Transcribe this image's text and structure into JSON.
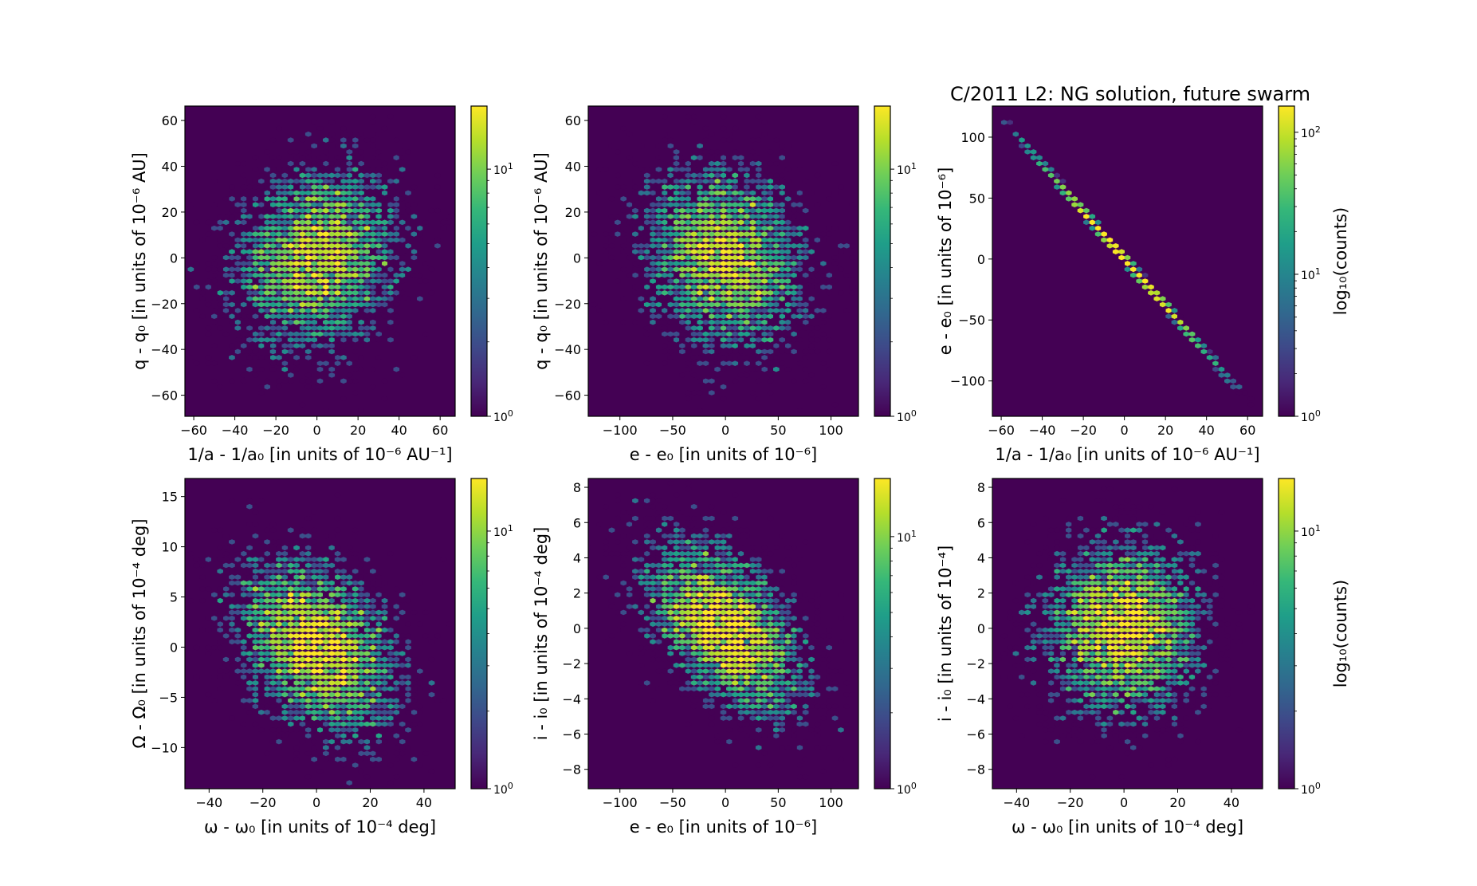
{
  "figure_title": "C/2011 L2: NG solution, future swarm",
  "chart_data": [
    {
      "type": "heatmap",
      "subtype": "hexbin",
      "panel": "top-left",
      "xlabel": "1/a - 1/a₀ [in units of 10⁻⁶ AU⁻¹]",
      "ylabel": "q - q₀ [in units of 10⁻⁶ AU]",
      "xlim": [
        -64.3,
        67.3
      ],
      "ylim": [
        -69.2,
        66.3
      ],
      "xticks": [
        -60,
        -40,
        -20,
        0,
        20,
        40,
        60
      ],
      "yticks": [
        -60,
        -40,
        -20,
        0,
        20,
        40,
        60
      ],
      "xtick_labels": [
        "−60",
        "−40",
        "−20",
        "0",
        "20",
        "40",
        "60"
      ],
      "ytick_labels": [
        "−60",
        "−40",
        "−20",
        "0",
        "20",
        "40",
        "60"
      ],
      "colorbar": {
        "scale": "log",
        "range": [
          1,
          18
        ],
        "ticks": [
          "10^0",
          "10^1"
        ],
        "label": ""
      },
      "distribution": {
        "x_mean": 0,
        "y_mean": 0,
        "x_std": 20,
        "y_std": 20,
        "correlation": 0.15
      },
      "title": ""
    },
    {
      "type": "heatmap",
      "subtype": "hexbin",
      "panel": "top-middle",
      "xlabel": "e - e₀ [in units of 10⁻⁶]",
      "ylabel": "q - q₀ [in units of 10⁻⁶ AU]",
      "xlim": [
        -130,
        126
      ],
      "ylim": [
        -69.2,
        66.3
      ],
      "xticks": [
        -100,
        -50,
        0,
        50,
        100
      ],
      "yticks": [
        -60,
        -40,
        -20,
        0,
        20,
        40,
        60
      ],
      "xtick_labels": [
        "−100",
        "−50",
        "0",
        "50",
        "100"
      ],
      "ytick_labels": [
        "−60",
        "−40",
        "−20",
        "0",
        "20",
        "40",
        "60"
      ],
      "colorbar": {
        "scale": "log",
        "range": [
          1,
          18
        ],
        "ticks": [
          "10^0",
          "10^1"
        ],
        "label": ""
      },
      "distribution": {
        "x_mean": 0,
        "y_mean": 0,
        "x_std": 38,
        "y_std": 20,
        "correlation": -0.15
      },
      "title": ""
    },
    {
      "type": "heatmap",
      "subtype": "hexbin",
      "panel": "top-right",
      "xlabel": "1/a - 1/a₀ [in units of 10⁻⁶ AU⁻¹]",
      "ylabel": "e - e₀ [in units of 10⁻⁶]",
      "xlim": [
        -64.3,
        67.3
      ],
      "ylim": [
        -129,
        125.5
      ],
      "xticks": [
        -60,
        -40,
        -20,
        0,
        20,
        40,
        60
      ],
      "yticks": [
        -100,
        -50,
        0,
        50,
        100
      ],
      "xtick_labels": [
        "−60",
        "−40",
        "−20",
        "0",
        "20",
        "40",
        "60"
      ],
      "ytick_labels": [
        "−100",
        "−50",
        "0",
        "50",
        "100"
      ],
      "colorbar": {
        "scale": "log",
        "range": [
          1,
          153
        ],
        "ticks": [
          "10^0",
          "10^1",
          "10^2"
        ],
        "label": "log₁₀(counts)"
      },
      "distribution": {
        "x_mean": 0,
        "y_mean": 0,
        "x_std": 20,
        "y_std": 38,
        "correlation": -1.0,
        "slope": -1.93
      },
      "title": "C/2011 L2: NG solution, future swarm"
    },
    {
      "type": "heatmap",
      "subtype": "hexbin",
      "panel": "bottom-left",
      "xlabel": "ω - ω₀ [in units of 10⁻⁴ deg]",
      "ylabel": "Ω - Ω₀ [in units of 10⁻⁴ deg]",
      "xlim": [
        -49,
        51.6
      ],
      "ylim": [
        -14.1,
        16.8
      ],
      "xticks": [
        -40,
        -20,
        0,
        20,
        40
      ],
      "yticks": [
        -10,
        -5,
        0,
        5,
        10,
        15
      ],
      "xtick_labels": [
        "−40",
        "−20",
        "0",
        "20",
        "40"
      ],
      "ytick_labels": [
        "−10",
        "−5",
        "0",
        "5",
        "10",
        "15"
      ],
      "colorbar": {
        "scale": "log",
        "range": [
          1,
          16
        ],
        "ticks": [
          "10^0",
          "10^1"
        ],
        "label": ""
      },
      "distribution": {
        "x_mean": 0,
        "y_mean": 0,
        "x_std": 15,
        "y_std": 4.5,
        "correlation": -0.35
      },
      "title": ""
    },
    {
      "type": "heatmap",
      "subtype": "hexbin",
      "panel": "bottom-middle",
      "xlabel": "e - e₀ [in units of 10⁻⁶]",
      "ylabel": "i - i₀ [in units of 10⁻⁴ deg]",
      "xlim": [
        -130,
        126
      ],
      "ylim": [
        -9.1,
        8.5
      ],
      "xticks": [
        -100,
        -50,
        0,
        50,
        100
      ],
      "yticks": [
        -8,
        -6,
        -4,
        -2,
        0,
        2,
        4,
        6,
        8
      ],
      "xtick_labels": [
        "−100",
        "−50",
        "0",
        "50",
        "100"
      ],
      "ytick_labels": [
        "−8",
        "−6",
        "−4",
        "−2",
        "0",
        "2",
        "4",
        "6",
        "8"
      ],
      "colorbar": {
        "scale": "log",
        "range": [
          1,
          17
        ],
        "ticks": [
          "10^0",
          "10^1"
        ],
        "label": ""
      },
      "distribution": {
        "x_mean": 0,
        "y_mean": 0,
        "x_std": 38,
        "y_std": 2.5,
        "correlation": -0.5
      },
      "title": ""
    },
    {
      "type": "heatmap",
      "subtype": "hexbin",
      "panel": "bottom-right",
      "xlabel": "ω - ω₀ [in units of 10⁻⁴ deg]",
      "ylabel": "i - i₀ [in units of 10⁻⁴]",
      "xlim": [
        -49,
        51.6
      ],
      "ylim": [
        -9.1,
        8.5
      ],
      "xticks": [
        -40,
        -20,
        0,
        20,
        40
      ],
      "yticks": [
        -8,
        -6,
        -4,
        -2,
        0,
        2,
        4,
        6,
        8
      ],
      "xtick_labels": [
        "−40",
        "−20",
        "0",
        "20",
        "40"
      ],
      "ytick_labels": [
        "−8",
        "−6",
        "−4",
        "−2",
        "0",
        "2",
        "4",
        "6",
        "8"
      ],
      "colorbar": {
        "scale": "log",
        "range": [
          1,
          16
        ],
        "ticks": [
          "10^0",
          "10^1"
        ],
        "label": "log₁₀(counts)"
      },
      "distribution": {
        "x_mean": 0,
        "y_mean": 0,
        "x_std": 15,
        "y_std": 2.5,
        "correlation": 0.0
      },
      "title": ""
    }
  ],
  "colors": {
    "background": "#440154",
    "viridis": [
      "#440154",
      "#482878",
      "#3e4989",
      "#31688e",
      "#26828e",
      "#1f9e89",
      "#35b779",
      "#6ece58",
      "#b5de2b",
      "#fde725"
    ]
  }
}
